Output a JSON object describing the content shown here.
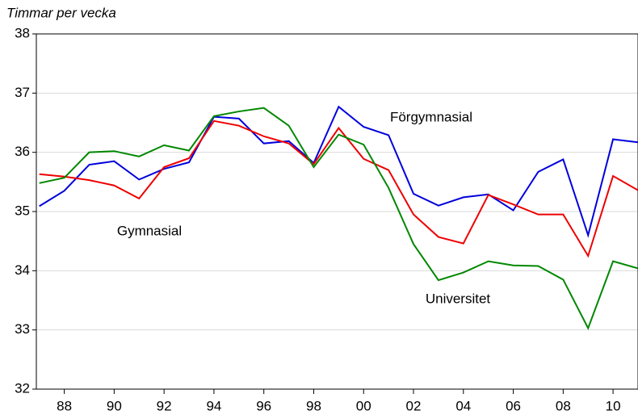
{
  "chart_data": {
    "type": "line",
    "y_label": "Timmar per vecka",
    "x": [
      1987,
      1988,
      1989,
      1990,
      1991,
      1992,
      1993,
      1994,
      1995,
      1996,
      1997,
      1998,
      1999,
      2000,
      2001,
      2002,
      2003,
      2004,
      2005,
      2006,
      2007,
      2008,
      2009,
      2010,
      2011
    ],
    "series": [
      {
        "name": "Förgymnasial",
        "color": "#0000dd",
        "values": [
          35.09,
          35.35,
          35.79,
          35.85,
          35.54,
          35.72,
          35.83,
          36.6,
          36.57,
          36.15,
          36.19,
          35.82,
          36.77,
          36.43,
          36.29,
          35.3,
          35.1,
          35.24,
          35.29,
          35.02,
          35.67,
          35.88,
          34.6,
          36.22,
          36.17
        ]
      },
      {
        "name": "Gymnasial",
        "color": "#ee0000",
        "values": [
          35.63,
          35.59,
          35.53,
          35.44,
          35.22,
          35.75,
          35.9,
          36.53,
          36.45,
          36.27,
          36.15,
          35.8,
          36.41,
          35.89,
          35.7,
          34.95,
          34.57,
          34.46,
          35.28,
          35.12,
          34.95,
          34.95,
          34.25,
          35.6,
          35.36
        ]
      },
      {
        "name": "Universitet",
        "color": "#008800",
        "values": [
          35.48,
          35.57,
          36.0,
          36.02,
          35.93,
          36.12,
          36.03,
          36.61,
          36.69,
          36.75,
          36.45,
          35.75,
          36.3,
          36.13,
          35.4,
          34.45,
          33.84,
          33.97,
          34.16,
          34.09,
          34.08,
          33.85,
          33.03,
          34.16,
          34.04
        ]
      }
    ],
    "xlim": [
      1986.88,
      2011
    ],
    "ylim": [
      32,
      38
    ],
    "yticks": [
      32,
      33,
      34,
      35,
      36,
      37,
      38
    ],
    "xticks": [
      {
        "value": 1988,
        "label": "88"
      },
      {
        "value": 1990,
        "label": "90"
      },
      {
        "value": 1992,
        "label": "92"
      },
      {
        "value": 1994,
        "label": "94"
      },
      {
        "value": 1996,
        "label": "96"
      },
      {
        "value": 1998,
        "label": "98"
      },
      {
        "value": 2000,
        "label": "00"
      },
      {
        "value": 2002,
        "label": "02"
      },
      {
        "value": 2004,
        "label": "04"
      },
      {
        "value": 2006,
        "label": "06"
      },
      {
        "value": 2008,
        "label": "08"
      },
      {
        "value": 2010,
        "label": "10"
      }
    ],
    "grid": true
  }
}
